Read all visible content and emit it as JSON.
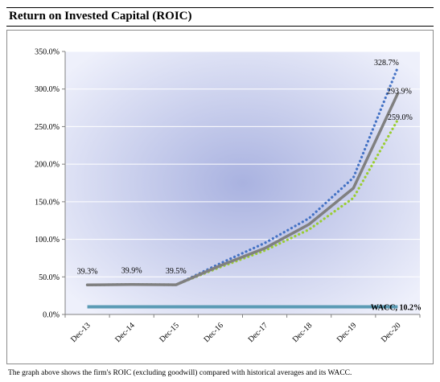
{
  "header": {
    "title": "Return on Invested Capital (ROIC)"
  },
  "caption": "The graph above shows the firm's ROIC (excluding goodwill) compared with historical averages and its WACC.",
  "colors": {
    "roic": "#808080",
    "series_blue": "#4472c4",
    "series_green": "#9acd32",
    "wacc": "#5b9bb5",
    "bg_center": "#a9b2e0",
    "bg_edge": "#eef0fb",
    "grid": "#ffffff"
  },
  "chart_data": {
    "type": "line",
    "categories": [
      "Dec-13",
      "Dec-14",
      "Dec-15",
      "Dec-16",
      "Dec-17",
      "Dec-18",
      "Dec-19",
      "Dec-20"
    ],
    "ylim": [
      0,
      350
    ],
    "yticks": [
      "0.0%",
      "50.0%",
      "100.0%",
      "150.0%",
      "200.0%",
      "250.0%",
      "300.0%",
      "350.0%"
    ],
    "ytick_values": [
      0,
      50,
      100,
      150,
      200,
      250,
      300,
      350
    ],
    "grid": true,
    "series": [
      {
        "key": "roic",
        "style": "solid",
        "values": [
          39.3,
          39.9,
          39.5,
          65,
          88,
          120,
          168,
          293.9
        ]
      },
      {
        "key": "blue",
        "style": "dotted",
        "values": [
          39.3,
          39.9,
          39.5,
          68,
          95,
          128,
          182,
          328.7
        ]
      },
      {
        "key": "green",
        "style": "dotted",
        "values": [
          39.3,
          39.9,
          39.5,
          63,
          85,
          113,
          155,
          259.0
        ]
      },
      {
        "key": "wacc",
        "style": "solid",
        "values": [
          10.2,
          10.2,
          10.2,
          10.2,
          10.2,
          10.2,
          10.2,
          10.2
        ]
      }
    ],
    "data_labels": [
      {
        "text": "39.3%",
        "x": "Dec-13",
        "y": 39.3,
        "series": "roic"
      },
      {
        "text": "39.9%",
        "x": "Dec-14",
        "y": 39.9,
        "series": "roic"
      },
      {
        "text": "39.5%",
        "x": "Dec-15",
        "y": 39.5,
        "series": "roic"
      },
      {
        "text": "328.7%",
        "x": "Dec-20",
        "y": 328.7,
        "series": "blue"
      },
      {
        "text": "293.9%",
        "x": "Dec-20",
        "y": 293.9,
        "series": "roic"
      },
      {
        "text": "259.0%",
        "x": "Dec-20",
        "y": 259.0,
        "series": "green"
      },
      {
        "text": "WACC, 10.2%",
        "x": "Dec-20",
        "y": 10.2,
        "series": "wacc"
      }
    ]
  }
}
